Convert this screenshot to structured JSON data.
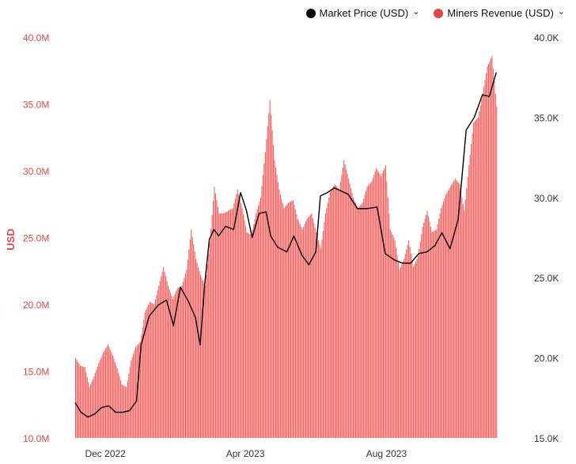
{
  "legend": {
    "market_price": {
      "label": "Market Price (USD)",
      "color": "#000000",
      "chevron": "chevron-down-icon"
    },
    "miners_revenue": {
      "label": "Miners Revenue (USD)",
      "color": "#e04848",
      "chevron": "chevron-down-icon"
    }
  },
  "chart_data": {
    "type": "bar",
    "title": "",
    "ylabel_left": "USD",
    "left_axis": {
      "ticks": [
        "10.0M",
        "15.0M",
        "20.0M",
        "25.0M",
        "30.0M",
        "35.0M",
        "40.0M"
      ],
      "range": [
        10000000,
        40000000
      ],
      "color": "#e04848"
    },
    "right_axis": {
      "ticks": [
        "15.0K",
        "20.0K",
        "25.0K",
        "30.0K",
        "35.0K",
        "40.0K"
      ],
      "range": [
        15000,
        40000
      ],
      "color": "#333333"
    },
    "x_ticks": [
      {
        "label": "Dec 2022",
        "date": "2022-12-01"
      },
      {
        "label": "Apr 2023",
        "date": "2023-04-01"
      },
      {
        "label": "Aug 2023",
        "date": "2023-08-01"
      }
    ],
    "x_range": [
      "2022-11-22",
      "2023-12-10"
    ],
    "series": [
      {
        "name": "Miners Revenue (USD)",
        "type": "bar",
        "axis": "left",
        "color": "#f26464",
        "points": [
          [
            "2022-11-22",
            16.0
          ],
          [
            "2022-11-26",
            15.4
          ],
          [
            "2022-11-30",
            15.3
          ],
          [
            "2022-12-04",
            13.8
          ],
          [
            "2022-12-08",
            14.6
          ],
          [
            "2022-12-12",
            15.6
          ],
          [
            "2022-12-16",
            16.4
          ],
          [
            "2022-12-20",
            17.0
          ],
          [
            "2022-12-24",
            16.2
          ],
          [
            "2022-12-28",
            15.2
          ],
          [
            "2023-01-01",
            14.0
          ],
          [
            "2023-01-05",
            13.8
          ],
          [
            "2023-01-09",
            15.8
          ],
          [
            "2023-01-13",
            16.8
          ],
          [
            "2023-01-17",
            17.2
          ],
          [
            "2023-01-21",
            19.4
          ],
          [
            "2023-01-25",
            20.2
          ],
          [
            "2023-01-29",
            20.0
          ],
          [
            "2023-02-02",
            21.4
          ],
          [
            "2023-02-06",
            22.8
          ],
          [
            "2023-02-10",
            21.4
          ],
          [
            "2023-02-14",
            20.4
          ],
          [
            "2023-02-18",
            21.2
          ],
          [
            "2023-02-22",
            21.4
          ],
          [
            "2023-02-26",
            22.6
          ],
          [
            "2023-03-02",
            25.6
          ],
          [
            "2023-03-06",
            23.4
          ],
          [
            "2023-03-10",
            22.2
          ],
          [
            "2023-03-14",
            21.4
          ],
          [
            "2023-03-18",
            24.6
          ],
          [
            "2023-03-22",
            28.8
          ],
          [
            "2023-03-26",
            26.8
          ],
          [
            "2023-03-30",
            26.8
          ],
          [
            "2023-04-03",
            27.0
          ],
          [
            "2023-04-07",
            27.2
          ],
          [
            "2023-04-11",
            28.6
          ],
          [
            "2023-04-15",
            27.2
          ],
          [
            "2023-04-19",
            25.4
          ],
          [
            "2023-04-23",
            25.2
          ],
          [
            "2023-04-27",
            26.8
          ],
          [
            "2023-05-01",
            28.0
          ],
          [
            "2023-05-05",
            31.4
          ],
          [
            "2023-05-09",
            35.3
          ],
          [
            "2023-05-13",
            30.8
          ],
          [
            "2023-05-17",
            28.6
          ],
          [
            "2023-05-21",
            27.2
          ],
          [
            "2023-05-25",
            27.6
          ],
          [
            "2023-05-29",
            27.8
          ],
          [
            "2023-06-02",
            26.4
          ],
          [
            "2023-06-06",
            25.6
          ],
          [
            "2023-06-10",
            26.4
          ],
          [
            "2023-06-14",
            26.8
          ],
          [
            "2023-06-18",
            25.4
          ],
          [
            "2023-06-22",
            24.2
          ],
          [
            "2023-06-26",
            26.8
          ],
          [
            "2023-06-30",
            28.4
          ],
          [
            "2023-07-04",
            29.0
          ],
          [
            "2023-07-08",
            28.6
          ],
          [
            "2023-07-12",
            30.8
          ],
          [
            "2023-07-16",
            29.4
          ],
          [
            "2023-07-20",
            28.0
          ],
          [
            "2023-07-24",
            27.2
          ],
          [
            "2023-07-28",
            27.6
          ],
          [
            "2023-08-01",
            28.8
          ],
          [
            "2023-08-05",
            29.2
          ],
          [
            "2023-08-09",
            30.2
          ],
          [
            "2023-08-13",
            29.6
          ],
          [
            "2023-08-17",
            30.4
          ],
          [
            "2023-08-21",
            25.6
          ],
          [
            "2023-08-25",
            24.8
          ],
          [
            "2023-08-29",
            22.6
          ],
          [
            "2023-09-02",
            23.4
          ],
          [
            "2023-09-06",
            24.8
          ],
          [
            "2023-09-10",
            22.8
          ],
          [
            "2023-09-14",
            23.6
          ],
          [
            "2023-09-18",
            25.8
          ],
          [
            "2023-09-22",
            27.0
          ],
          [
            "2023-09-26",
            25.4
          ],
          [
            "2023-09-30",
            25.6
          ],
          [
            "2023-10-04",
            27.2
          ],
          [
            "2023-10-08",
            28.2
          ],
          [
            "2023-10-12",
            28.8
          ],
          [
            "2023-10-16",
            29.4
          ],
          [
            "2023-10-20",
            29.0
          ],
          [
            "2023-10-24",
            27.0
          ],
          [
            "2023-10-28",
            30.4
          ],
          [
            "2023-11-01",
            33.6
          ],
          [
            "2023-11-05",
            34.0
          ],
          [
            "2023-11-09",
            35.8
          ],
          [
            "2023-11-13",
            37.8
          ],
          [
            "2023-11-17",
            38.6
          ],
          [
            "2023-11-21",
            34.8
          ]
        ]
      },
      {
        "name": "Market Price (USD)",
        "type": "line",
        "axis": "right",
        "color": "#000000",
        "points": [
          [
            "2022-11-22",
            17.2
          ],
          [
            "2022-11-27",
            16.6
          ],
          [
            "2022-12-03",
            16.3
          ],
          [
            "2022-12-09",
            16.5
          ],
          [
            "2022-12-15",
            16.9
          ],
          [
            "2022-12-21",
            17.0
          ],
          [
            "2022-12-27",
            16.6
          ],
          [
            "2023-01-02",
            16.6
          ],
          [
            "2023-01-08",
            16.7
          ],
          [
            "2023-01-14",
            17.3
          ],
          [
            "2023-01-18",
            20.8
          ],
          [
            "2023-01-25",
            22.6
          ],
          [
            "2023-02-02",
            23.3
          ],
          [
            "2023-02-09",
            23.6
          ],
          [
            "2023-02-15",
            22.0
          ],
          [
            "2023-02-21",
            24.4
          ],
          [
            "2023-02-28",
            23.5
          ],
          [
            "2023-03-06",
            22.5
          ],
          [
            "2023-03-10",
            20.8
          ],
          [
            "2023-03-14",
            24.6
          ],
          [
            "2023-03-18",
            27.4
          ],
          [
            "2023-03-22",
            28.0
          ],
          [
            "2023-03-26",
            27.6
          ],
          [
            "2023-04-01",
            28.2
          ],
          [
            "2023-04-08",
            28.0
          ],
          [
            "2023-04-14",
            30.3
          ],
          [
            "2023-04-19",
            29.2
          ],
          [
            "2023-04-24",
            27.5
          ],
          [
            "2023-04-30",
            29.0
          ],
          [
            "2023-05-06",
            29.1
          ],
          [
            "2023-05-10",
            27.6
          ],
          [
            "2023-05-16",
            26.9
          ],
          [
            "2023-05-24",
            26.6
          ],
          [
            "2023-05-30",
            27.6
          ],
          [
            "2023-06-06",
            26.4
          ],
          [
            "2023-06-12",
            25.8
          ],
          [
            "2023-06-18",
            26.6
          ],
          [
            "2023-06-22",
            30.1
          ],
          [
            "2023-06-28",
            30.3
          ],
          [
            "2023-07-04",
            30.6
          ],
          [
            "2023-07-10",
            30.4
          ],
          [
            "2023-07-16",
            30.2
          ],
          [
            "2023-07-24",
            29.3
          ],
          [
            "2023-08-01",
            29.3
          ],
          [
            "2023-08-10",
            29.4
          ],
          [
            "2023-08-17",
            26.5
          ],
          [
            "2023-08-25",
            26.1
          ],
          [
            "2023-09-01",
            25.9
          ],
          [
            "2023-09-08",
            25.9
          ],
          [
            "2023-09-15",
            26.5
          ],
          [
            "2023-09-22",
            26.6
          ],
          [
            "2023-09-29",
            27.0
          ],
          [
            "2023-10-05",
            27.8
          ],
          [
            "2023-10-12",
            26.8
          ],
          [
            "2023-10-19",
            28.6
          ],
          [
            "2023-10-26",
            34.2
          ],
          [
            "2023-11-02",
            35.0
          ],
          [
            "2023-11-09",
            36.4
          ],
          [
            "2023-11-15",
            36.3
          ],
          [
            "2023-11-21",
            37.8
          ]
        ]
      }
    ],
    "grid": false,
    "legend_position": "top-right"
  }
}
